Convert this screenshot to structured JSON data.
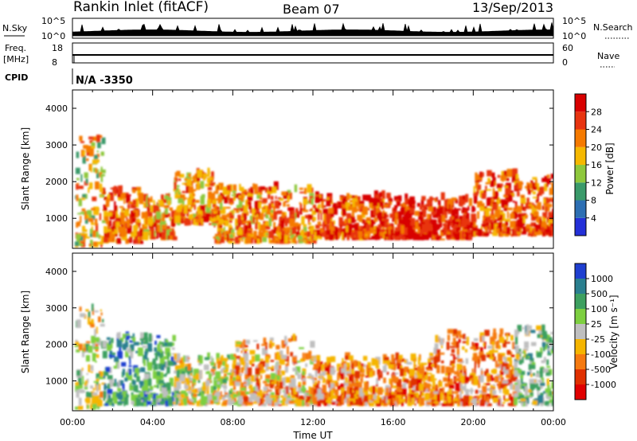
{
  "header": {
    "station": "Rankin Inlet (fitACF)",
    "beam": "Beam 07",
    "date": "13/Sep/2013"
  },
  "summary_panels": {
    "nsky": {
      "label": "N.Sky",
      "ticks": [
        "10^5",
        "10^0"
      ]
    },
    "nsearch": {
      "label": "N.Search",
      "ticks": [
        "10^5",
        "10^0"
      ]
    },
    "freq": {
      "label": "Freq.",
      "unit": "[MHz]",
      "ticks": [
        "18",
        "8"
      ]
    },
    "nave": {
      "label": "Nave",
      "ticks": [
        "60",
        "0"
      ]
    },
    "cpid": {
      "label": "CPID",
      "value": "N/A -3350"
    }
  },
  "chart_data": [
    {
      "type": "heatmap",
      "panel": "power",
      "ylabel": "Slant Range [km]",
      "xlabel": "",
      "ylim": [
        180,
        4500
      ],
      "yticks": [
        "1000",
        "2000",
        "3000",
        "4000"
      ],
      "xlim_hours": [
        0,
        24
      ],
      "xticks": [],
      "colorbar_label": "Power [dB]",
      "colorbar_ticks": [
        "4",
        "8",
        "12",
        "16",
        "20",
        "24",
        "28"
      ],
      "colors": [
        "#2430d8",
        "#2d6fb3",
        "#3a9a6a",
        "#8ec83c",
        "#f5b800",
        "#f57a00",
        "#e83410",
        "#d80000"
      ],
      "data_blobs": [
        {
          "t": [
            0.1,
            1.5
          ],
          "r": [
            200,
            3200
          ],
          "level": 4
        },
        {
          "t": [
            1.5,
            3.5
          ],
          "r": [
            300,
            1800
          ],
          "level": 6
        },
        {
          "t": [
            3.5,
            5.0
          ],
          "r": [
            400,
            1500
          ],
          "level": 5
        },
        {
          "t": [
            5.0,
            7.0
          ],
          "r": [
            800,
            2200
          ],
          "level": 5
        },
        {
          "t": [
            7.0,
            12.0
          ],
          "r": [
            300,
            1800
          ],
          "level": 5
        },
        {
          "t": [
            12.0,
            16.0
          ],
          "r": [
            400,
            1600
          ],
          "level": 6
        },
        {
          "t": [
            16.0,
            20.0
          ],
          "r": [
            400,
            1500
          ],
          "level": 7
        },
        {
          "t": [
            20.0,
            24.0
          ],
          "r": [
            500,
            2200
          ],
          "level": 6
        }
      ]
    },
    {
      "type": "heatmap",
      "panel": "velocity",
      "ylabel": "Slant Range [km]",
      "xlabel": "Time UT",
      "ylim": [
        180,
        4500
      ],
      "yticks": [
        "1000",
        "2000",
        "3000",
        "4000"
      ],
      "xlim_hours": [
        0,
        24
      ],
      "xticks": [
        "00:00",
        "04:00",
        "08:00",
        "12:00",
        "16:00",
        "20:00",
        "00:00"
      ],
      "colorbar_label": "Velocity [m s⁻¹]",
      "colorbar_ticks": [
        "1000",
        "500",
        "100",
        "25",
        "-25",
        "-100",
        "-500",
        "-1000"
      ],
      "colors": [
        "#1f3fd0",
        "#2a7f8f",
        "#3da060",
        "#7dcf40",
        "#bfbfbf",
        "#f5b500",
        "#f57a10",
        "#e03000",
        "#e00000"
      ],
      "data_blobs": [
        {
          "t": [
            0.1,
            1.5
          ],
          "r": [
            200,
            3200
          ],
          "level": 4
        },
        {
          "t": [
            1.5,
            5.0
          ],
          "r": [
            300,
            2200
          ],
          "level": 2
        },
        {
          "t": [
            5.0,
            8.0
          ],
          "r": [
            300,
            1600
          ],
          "level": 4
        },
        {
          "t": [
            8.0,
            12.0
          ],
          "r": [
            300,
            2100
          ],
          "level": 5
        },
        {
          "t": [
            12.0,
            18.0
          ],
          "r": [
            300,
            1600
          ],
          "level": 6
        },
        {
          "t": [
            18.0,
            22.0
          ],
          "r": [
            300,
            2300
          ],
          "level": 6
        },
        {
          "t": [
            22.0,
            24.0
          ],
          "r": [
            300,
            2500
          ],
          "level": 3
        }
      ]
    }
  ]
}
